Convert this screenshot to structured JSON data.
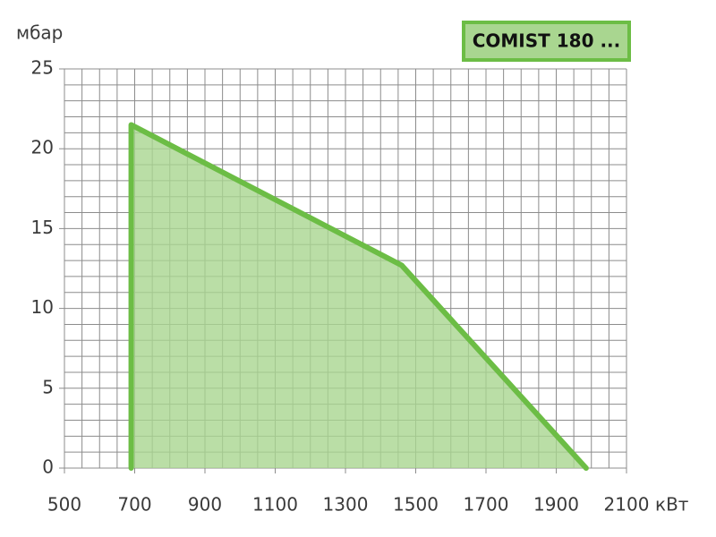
{
  "chart_data": {
    "type": "area",
    "ylabel": "мбар",
    "xlabel": "кВт",
    "series": [
      {
        "name": "COMIST 180 ...",
        "color": "#6cbd45",
        "fill": "#a9d690",
        "x": [
          690,
          690,
          1460,
          1985
        ],
        "values": [
          0,
          21.5,
          12.7,
          0
        ]
      }
    ],
    "xlim": [
      500,
      2100
    ],
    "xticks": [
      500,
      700,
      900,
      1100,
      1300,
      1500,
      1700,
      1900,
      2100
    ],
    "ylim": [
      0,
      25
    ],
    "yticks": [
      0,
      5,
      10,
      15,
      20,
      25
    ],
    "grid": {
      "x_step": 50,
      "y_step": 1
    },
    "legend": "upper right"
  }
}
